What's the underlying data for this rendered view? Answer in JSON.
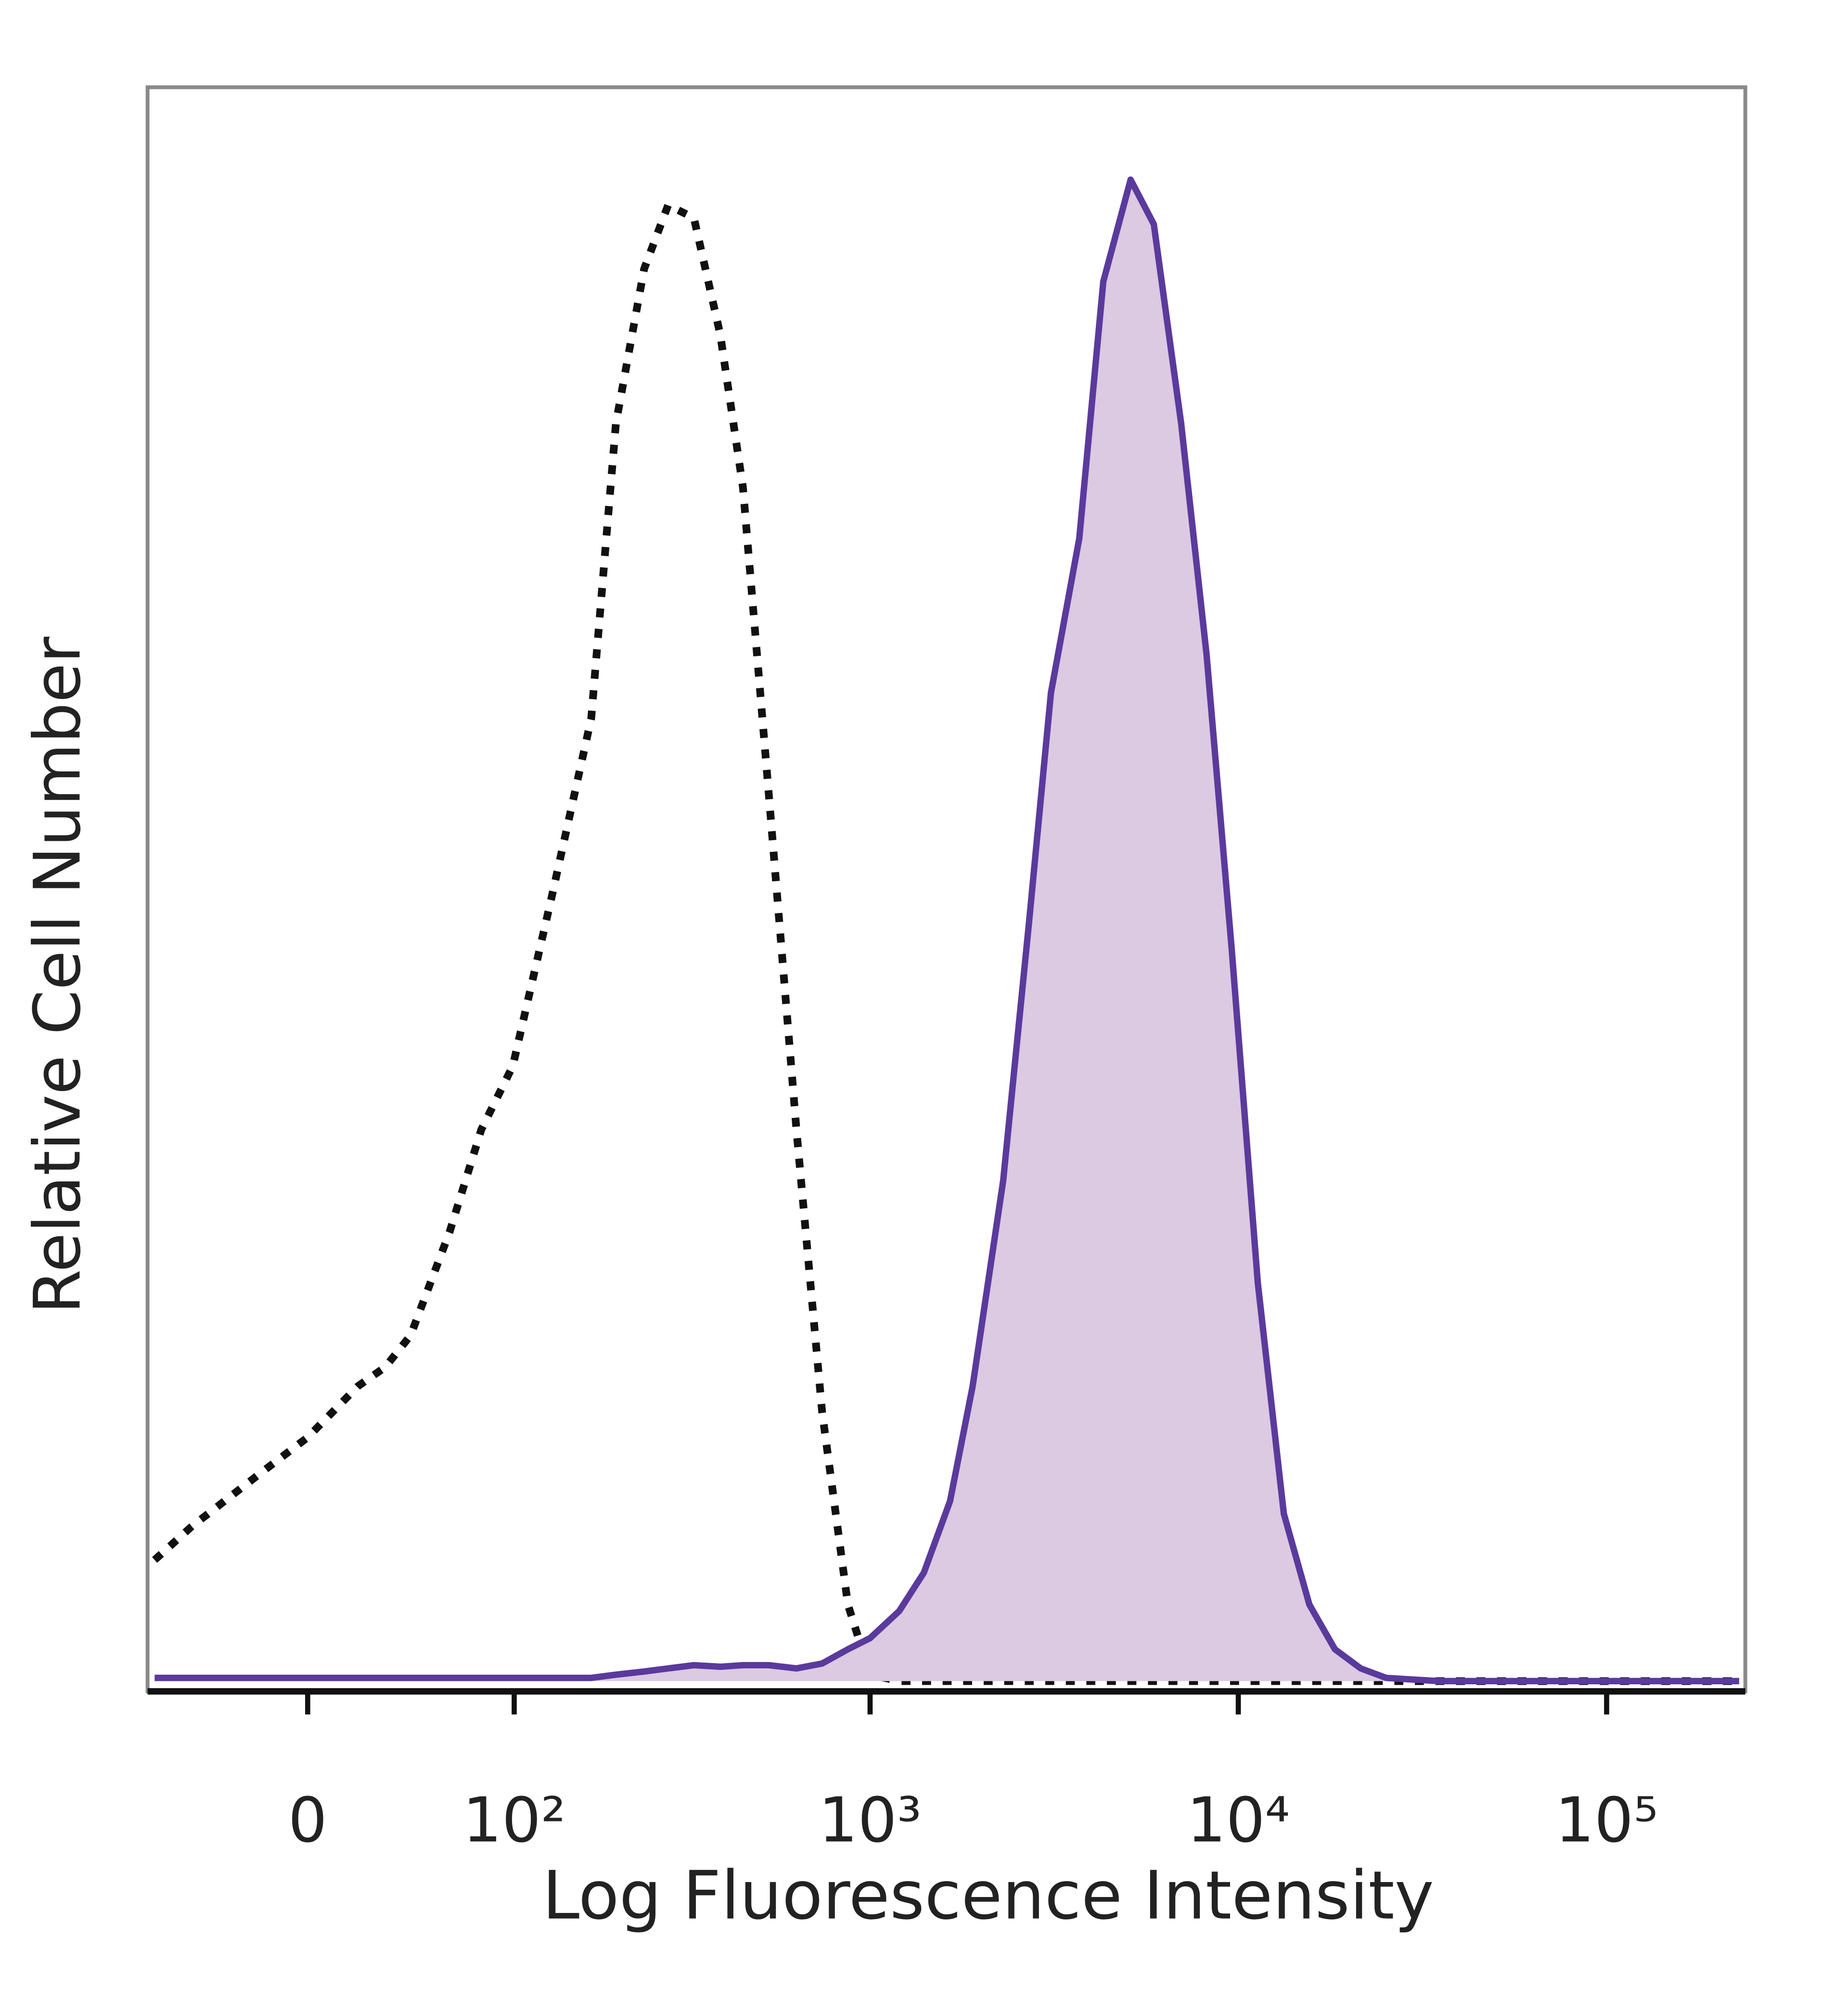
{
  "chart_data": {
    "type": "line",
    "xlabel": "Log Fluorescence Intensity",
    "ylabel": "Relative Cell Number",
    "xscale": "biexponential",
    "xlim": [
      -70,
      238000
    ],
    "ylim": [
      0,
      100
    ],
    "xticks": [
      0,
      {
        "value": 100,
        "label": "10²"
      },
      {
        "value": 1000,
        "label": "10³"
      },
      {
        "value": 10000,
        "label": "10⁴"
      },
      {
        "value": 100000,
        "label": "10⁵"
      }
    ],
    "x": [
      -66,
      -47,
      -19,
      0,
      19,
      30,
      41,
      60,
      78,
      99,
      130,
      170,
      200,
      240,
      280,
      330,
      390,
      450,
      530,
      630,
      740,
      870,
      1000,
      1200,
      1400,
      1650,
      1900,
      2300,
      2700,
      3100,
      3700,
      4300,
      5100,
      5900,
      7000,
      8200,
      9600,
      11300,
      13300,
      15600,
      18300,
      21500,
      25200,
      35000,
      66000,
      147000,
      229000
    ],
    "series": [
      {
        "color": "#111111",
        "dashed": true,
        "values": [
          7.6,
          9.7,
          12.9,
          15.3,
          18.5,
          19.7,
          21.7,
          28.2,
          34.6,
          38.6,
          49.1,
          60.4,
          78.9,
          88.6,
          92.6,
          91.8,
          84.5,
          74.9,
          55.6,
          34.6,
          16.9,
          4.8,
          0.4,
          0,
          0,
          0,
          0,
          0,
          0,
          0,
          0,
          0,
          0,
          0,
          0,
          0,
          0,
          0,
          0,
          0,
          0,
          0,
          0,
          0,
          0,
          0,
          0
        ]
      },
      {
        "color": "#5a3a9c",
        "fill": "#dcc9e2",
        "values": [
          0.2,
          0.2,
          0.2,
          0.2,
          0.2,
          0.2,
          0.2,
          0.2,
          0.2,
          0.2,
          0.2,
          0.2,
          0.4,
          0.6,
          0.8,
          1.0,
          0.9,
          1.0,
          1.0,
          0.8,
          1.1,
          2.0,
          2.7,
          4.4,
          6.8,
          11.3,
          18.5,
          31.4,
          47.5,
          62.0,
          71.7,
          87.8,
          94.2,
          91.4,
          78.9,
          64.4,
          45.9,
          25.0,
          10.5,
          4.8,
          2.0,
          0.8,
          0.2,
          0,
          0,
          0,
          0
        ]
      }
    ]
  }
}
